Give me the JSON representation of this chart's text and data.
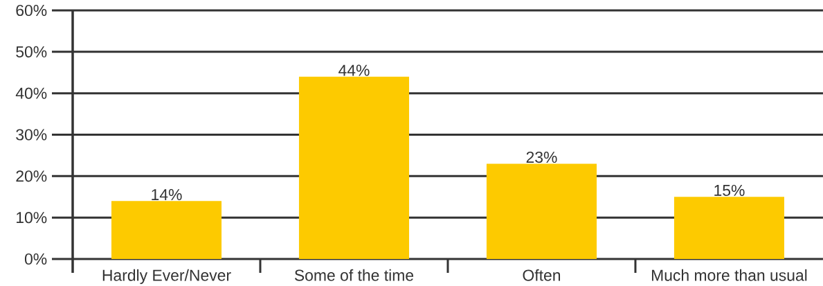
{
  "chart_data": {
    "type": "bar",
    "categories": [
      "Hardly Ever/Never",
      "Some of the time",
      "Often",
      "Much more than usual"
    ],
    "values": [
      14,
      44,
      23,
      15
    ],
    "color": "#fdca00",
    "value_labels": [
      "14%",
      "44%",
      "23%",
      "15%"
    ],
    "ylim": [
      0,
      60
    ],
    "yticks": [
      {
        "value": 0,
        "label": "0%"
      },
      {
        "value": 10,
        "label": "10%"
      },
      {
        "value": 20,
        "label": "20%"
      },
      {
        "value": 30,
        "label": "30%"
      },
      {
        "value": 40,
        "label": "40%"
      },
      {
        "value": 50,
        "label": "50%"
      },
      {
        "value": 60,
        "label": "60%"
      }
    ],
    "grid": "y"
  }
}
